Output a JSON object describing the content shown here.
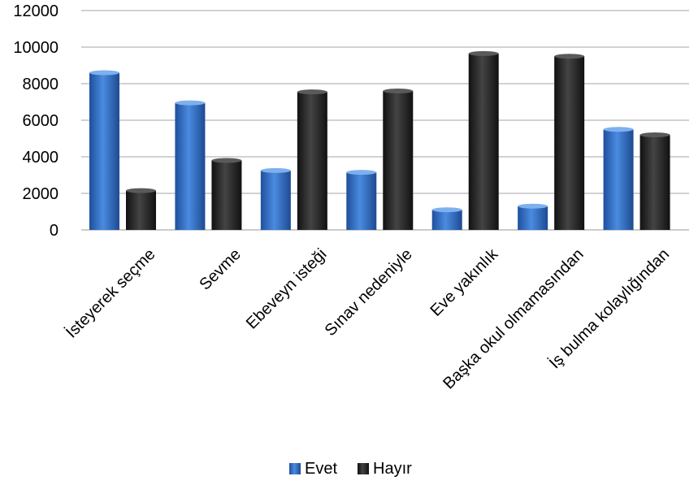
{
  "chart_data": {
    "type": "bar",
    "categories": [
      "İsteyerek seçme",
      "Sevme",
      "Ebeveyn isteği",
      "Sınav nedeniyle",
      "Eve yakınlık",
      "Başka okul olmamasından",
      "İş bulma kolaylığından"
    ],
    "series": [
      {
        "name": "Evet",
        "values": [
          8600,
          6950,
          3250,
          3150,
          1100,
          1300,
          5500
        ],
        "color": "#2e6ec8"
      },
      {
        "name": "Hayır",
        "values": [
          2150,
          3800,
          7550,
          7600,
          9650,
          9500,
          5200
        ],
        "color": "#222222"
      }
    ],
    "yticks": [
      "0",
      "2000",
      "4000",
      "6000",
      "8000",
      "10000",
      "12000"
    ],
    "ylim": [
      0,
      12000
    ],
    "grid": true,
    "legend_position": "bottom"
  }
}
